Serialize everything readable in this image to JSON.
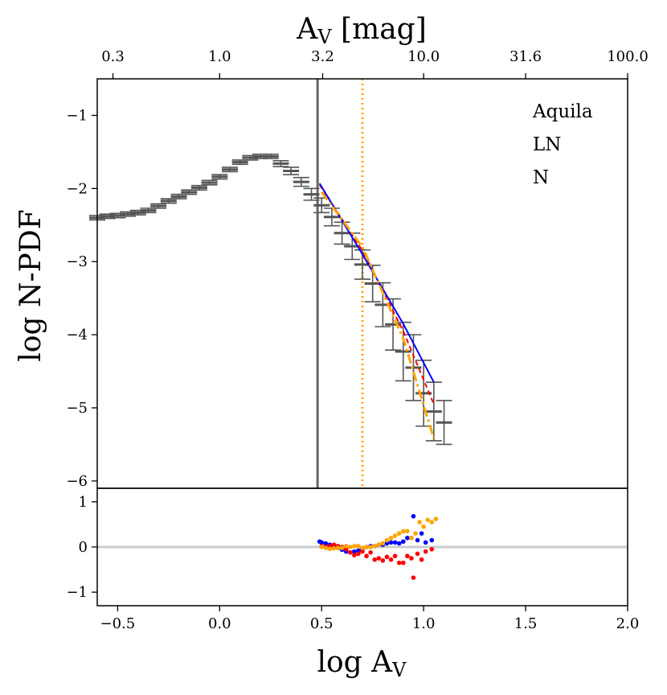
{
  "chart_data": {
    "type": "scatter",
    "main_panel": {
      "xlabel_base": "log A",
      "xlabel_sub": "V",
      "ylabel": "log N-PDF",
      "top_xlabel_base": "A",
      "top_xlabel_sub": "V",
      "top_xlabel_unit": " [mag]",
      "xlim": [
        -0.6,
        2.0
      ],
      "ylim": [
        -6.1,
        -0.5
      ],
      "yticks": [
        -1,
        -2,
        -3,
        -4,
        -5,
        -6
      ],
      "ytick_labels": [
        "−1",
        "−2",
        "−3",
        "−4",
        "−5",
        "−6"
      ],
      "top_xticks": [
        -0.523,
        0.0,
        0.505,
        1.0,
        1.5,
        2.0
      ],
      "top_xtick_labels": [
        "0.3",
        "1.0",
        "3.2",
        "10.0",
        "31.6",
        "100.0"
      ],
      "threshold_log_av": 0.48,
      "vertical_dotted_log_av": 0.7,
      "legend": [
        "Aquila",
        "LN",
        "N"
      ],
      "pdf_x": [
        -0.6,
        -0.55,
        -0.5,
        -0.45,
        -0.4,
        -0.35,
        -0.3,
        -0.25,
        -0.2,
        -0.15,
        -0.1,
        -0.05,
        0.0,
        0.05,
        0.1,
        0.15,
        0.2,
        0.25,
        0.3,
        0.35,
        0.4,
        0.45,
        0.5,
        0.55,
        0.6,
        0.65,
        0.7,
        0.75,
        0.8,
        0.85,
        0.9,
        0.95,
        1.0,
        1.05,
        1.1
      ],
      "pdf_y": [
        -2.4,
        -2.38,
        -2.37,
        -2.35,
        -2.33,
        -2.3,
        -2.24,
        -2.17,
        -2.11,
        -2.05,
        -1.99,
        -1.92,
        -1.84,
        -1.74,
        -1.64,
        -1.58,
        -1.56,
        -1.56,
        -1.66,
        -1.76,
        -1.91,
        -2.08,
        -2.23,
        -2.39,
        -2.61,
        -2.79,
        -3.04,
        -3.3,
        -3.59,
        -3.86,
        -4.23,
        -4.45,
        -4.8,
        -5.05,
        -5.2
      ],
      "pdf_err": [
        0.03,
        0.03,
        0.03,
        0.03,
        0.03,
        0.03,
        0.03,
        0.03,
        0.03,
        0.03,
        0.03,
        0.03,
        0.03,
        0.03,
        0.03,
        0.03,
        0.03,
        0.03,
        0.04,
        0.05,
        0.06,
        0.08,
        0.1,
        0.12,
        0.15,
        0.18,
        0.2,
        0.25,
        0.3,
        0.35,
        0.4,
        0.45,
        0.45,
        0.4,
        0.3
      ],
      "fits": [
        {
          "name": "LN fit",
          "color": "#ff0000",
          "style": "dashed",
          "x": [
            0.49,
            0.7,
            0.9,
            1.05
          ],
          "y": [
            -1.95,
            -2.85,
            -3.95,
            -4.95
          ]
        },
        {
          "name": "N fit",
          "color": "#0000ff",
          "style": "solid",
          "x": [
            0.49,
            0.7,
            0.9,
            1.05
          ],
          "y": [
            -1.93,
            -2.9,
            -3.85,
            -4.65
          ]
        },
        {
          "name": "orange fit",
          "color": "#ffa500",
          "style": "dashdot",
          "x": [
            0.5,
            0.7,
            0.9,
            1.05
          ],
          "y": [
            -2.05,
            -2.8,
            -4.05,
            -5.42
          ]
        }
      ]
    },
    "residual_panel": {
      "xlim": [
        -0.6,
        2.0
      ],
      "ylim": [
        -1.3,
        1.3
      ],
      "yticks": [
        1,
        0,
        -1
      ],
      "ytick_labels": [
        "1",
        "0",
        "−1"
      ],
      "xticks": [
        -0.5,
        0.0,
        0.5,
        1.0,
        1.5,
        2.0
      ],
      "xtick_labels": [
        "−0.5",
        "0.0",
        "0.5",
        "1.0",
        "1.5",
        "2.0"
      ],
      "series": [
        {
          "name": "blue",
          "color": "#0000ff",
          "x": [
            0.49,
            0.5,
            0.52,
            0.54,
            0.56,
            0.58,
            0.6,
            0.62,
            0.64,
            0.66,
            0.68,
            0.7,
            0.72,
            0.74,
            0.76,
            0.78,
            0.8,
            0.82,
            0.84,
            0.86,
            0.88,
            0.9,
            0.92,
            0.94,
            0.95,
            0.97,
            0.99,
            1.01,
            1.04
          ],
          "y": [
            0.12,
            0.1,
            0.08,
            0.05,
            0.02,
            -0.02,
            -0.06,
            -0.1,
            -0.12,
            -0.1,
            -0.08,
            -0.04,
            0.0,
            0.02,
            0.02,
            0.05,
            0.05,
            0.08,
            0.1,
            0.1,
            0.08,
            0.12,
            0.2,
            0.2,
            0.68,
            0.15,
            0.3,
            0.1,
            0.15
          ]
        },
        {
          "name": "red",
          "color": "#ff0000",
          "x": [
            0.5,
            0.52,
            0.54,
            0.56,
            0.58,
            0.6,
            0.62,
            0.64,
            0.66,
            0.68,
            0.7,
            0.72,
            0.74,
            0.76,
            0.78,
            0.8,
            0.82,
            0.84,
            0.86,
            0.88,
            0.9,
            0.92,
            0.94,
            0.95,
            0.97,
            0.99,
            1.01,
            1.04
          ],
          "y": [
            0.02,
            0.0,
            0.02,
            0.05,
            0.02,
            0.0,
            -0.05,
            -0.12,
            -0.18,
            -0.15,
            -0.1,
            -0.2,
            -0.12,
            -0.28,
            -0.25,
            -0.3,
            -0.22,
            -0.28,
            -0.2,
            -0.35,
            -0.35,
            -0.2,
            -0.25,
            -0.68,
            -0.15,
            -0.28,
            -0.1,
            -0.05
          ]
        },
        {
          "name": "orange",
          "color": "#ffa500",
          "x": [
            0.5,
            0.52,
            0.54,
            0.56,
            0.58,
            0.6,
            0.62,
            0.64,
            0.66,
            0.68,
            0.7,
            0.72,
            0.74,
            0.76,
            0.78,
            0.8,
            0.82,
            0.84,
            0.86,
            0.88,
            0.9,
            0.92,
            0.94,
            0.96,
            0.98,
            1.0,
            1.02,
            1.04,
            1.06
          ],
          "y": [
            0.0,
            -0.02,
            -0.04,
            -0.03,
            -0.02,
            -0.02,
            0.02,
            0.0,
            0.02,
            0.02,
            -0.02,
            0.0,
            0.0,
            0.02,
            0.05,
            0.08,
            0.15,
            0.2,
            0.25,
            0.3,
            0.35,
            0.35,
            0.2,
            0.3,
            0.55,
            0.45,
            0.6,
            0.55,
            0.62
          ]
        }
      ]
    }
  }
}
